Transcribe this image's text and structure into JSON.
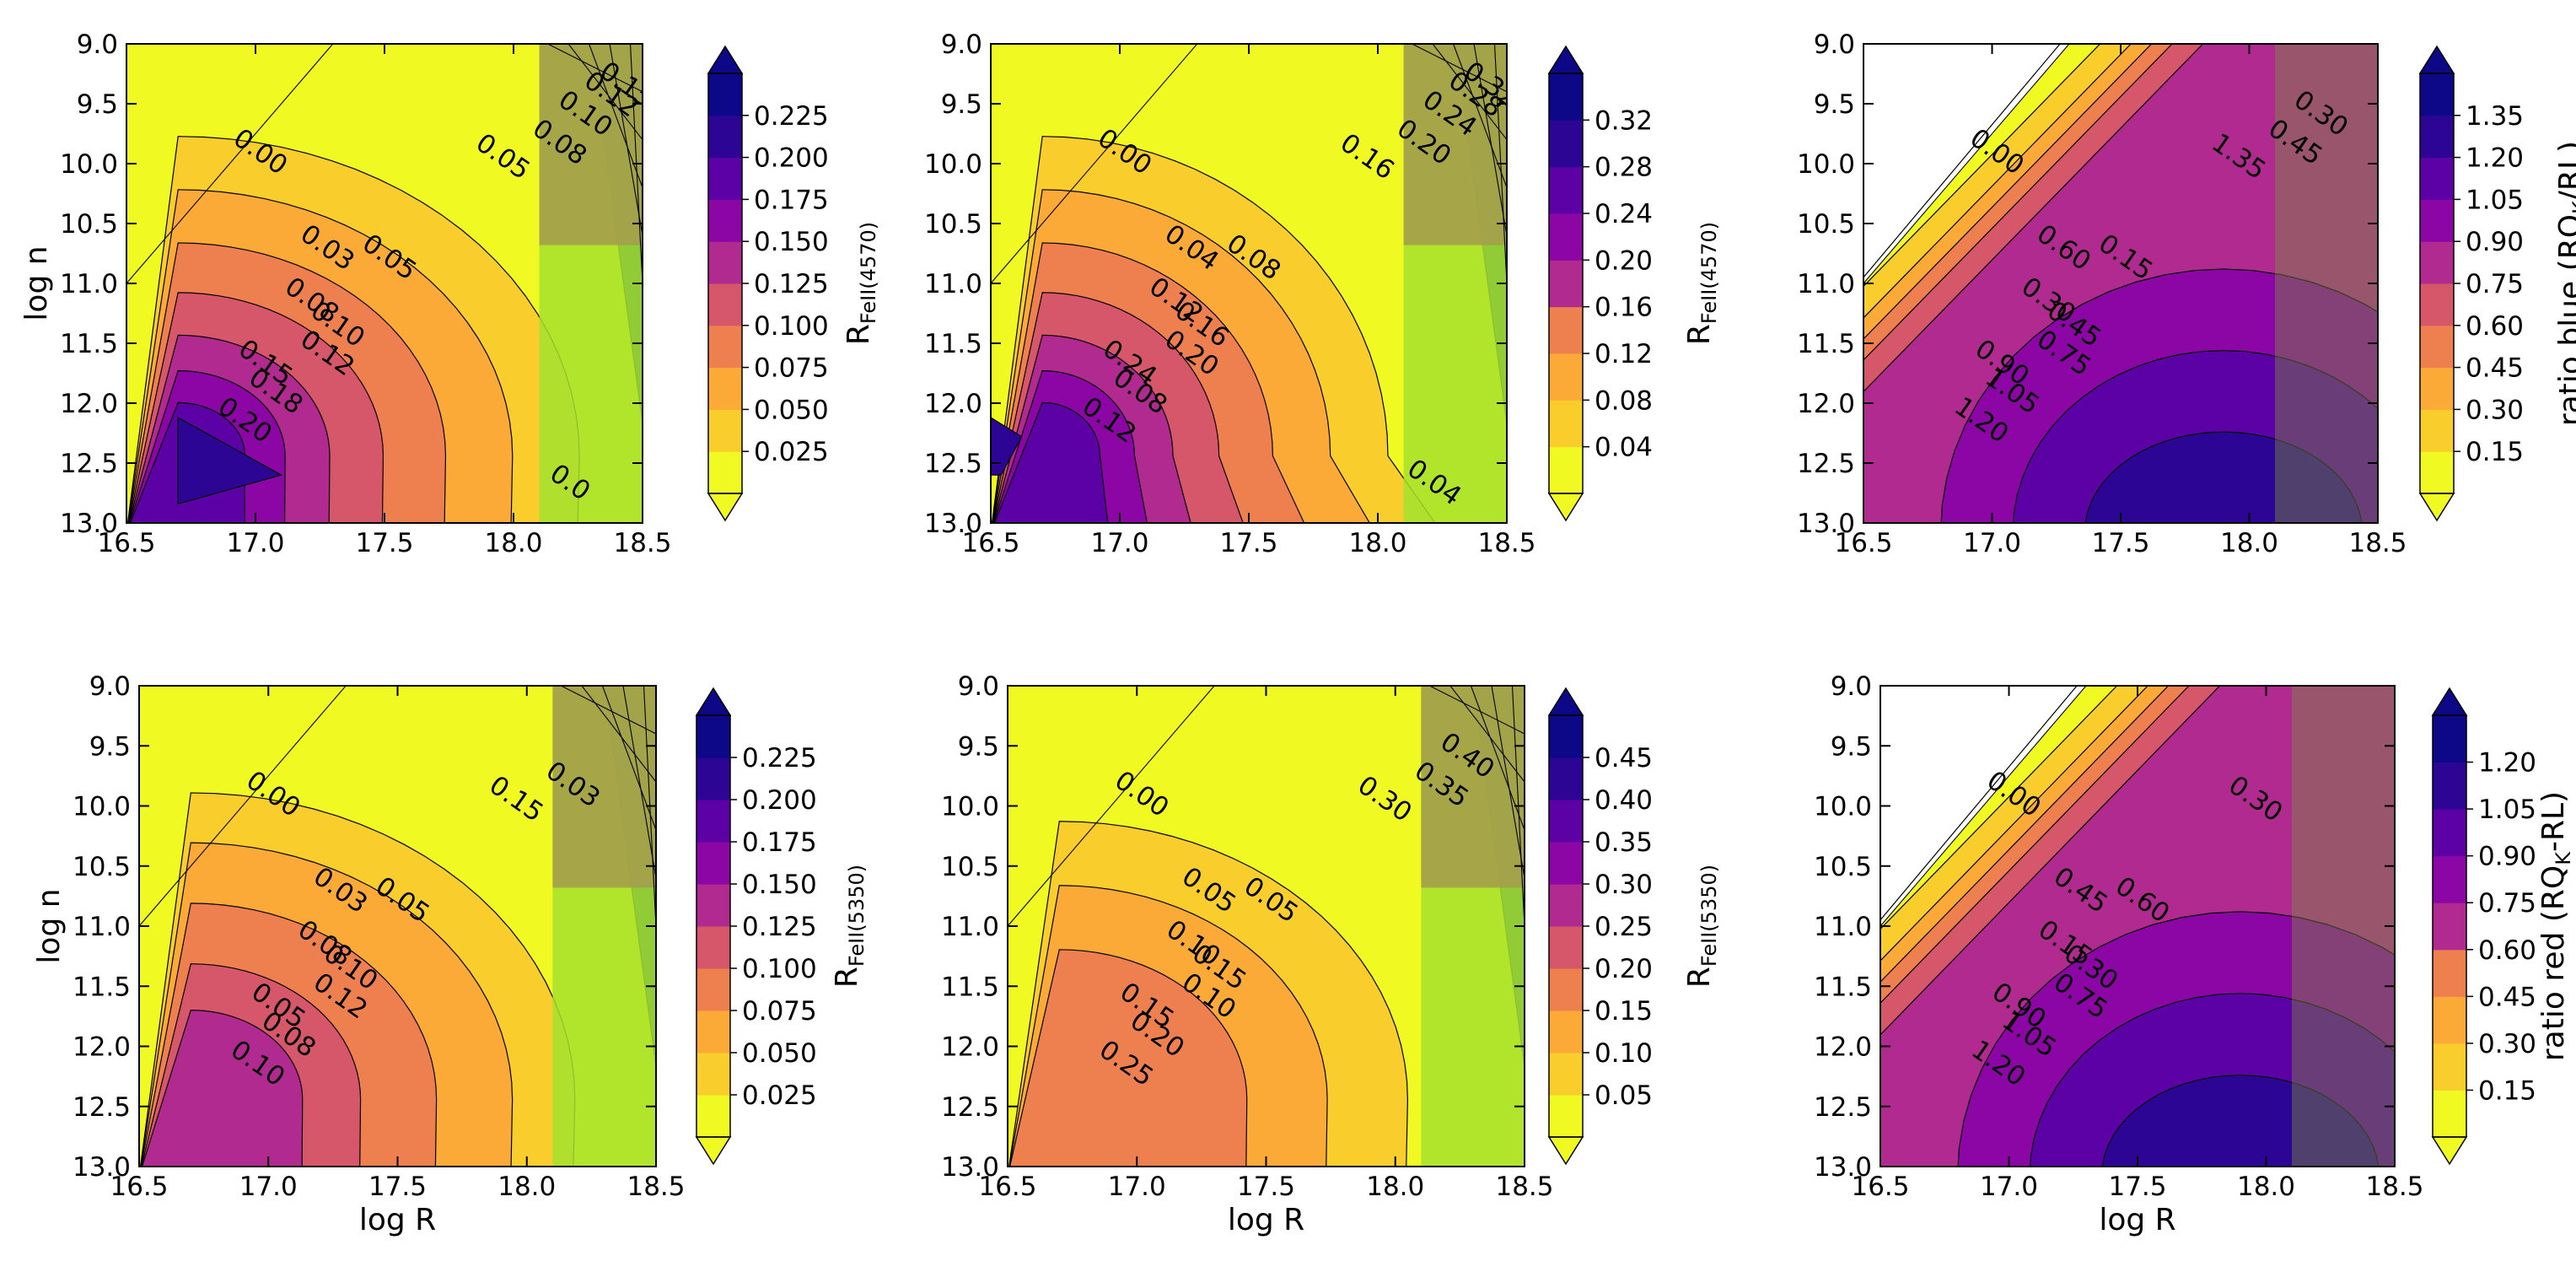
{
  "chart_data": [
    {
      "id": "p1",
      "type": "contour",
      "xlabel": "",
      "ylabel": "log n",
      "colorbar_label": "R",
      "colorbar_sub": "FeII(4570)",
      "x_ticks": [
        "16.5",
        "17.0",
        "17.5",
        "18.0",
        "18.5"
      ],
      "y_ticks": [
        "9.0",
        "9.5",
        "10.0",
        "10.5",
        "11.0",
        "11.5",
        "12.0",
        "12.5",
        "13.0"
      ],
      "xlim": [
        16.5,
        18.5
      ],
      "ylim": [
        9.0,
        13.0
      ],
      "colorbar_ticks": [
        "0.025",
        "0.050",
        "0.075",
        "0.100",
        "0.125",
        "0.150",
        "0.175",
        "0.200",
        "0.225"
      ],
      "contour_labels": [
        "0.00",
        "0.03",
        "0.05",
        "0.08",
        "0.10",
        "0.12",
        "0.15",
        "0.18",
        "0.20",
        "0.05",
        "0.08",
        "0.10",
        "0.12",
        "0.15",
        "0.0"
      ]
    },
    {
      "id": "p2",
      "type": "contour",
      "xlabel": "",
      "ylabel": "",
      "colorbar_label": "R",
      "colorbar_sub": "FeII(4570)",
      "x_ticks": [
        "16.5",
        "17.0",
        "17.5",
        "18.0",
        "18.5"
      ],
      "y_ticks": [
        "9.0",
        "9.5",
        "10.0",
        "10.5",
        "11.0",
        "11.5",
        "12.0",
        "12.5",
        "13.0"
      ],
      "xlim": [
        16.5,
        18.5
      ],
      "ylim": [
        9.0,
        13.0
      ],
      "colorbar_ticks": [
        "0.04",
        "0.08",
        "0.12",
        "0.16",
        "0.20",
        "0.24",
        "0.28",
        "0.32"
      ],
      "contour_labels": [
        "0.00",
        "0.04",
        "0.08",
        "0.12",
        "0.16",
        "0.20",
        "0.24",
        "0.08",
        "0.12",
        "0.16",
        "0.20",
        "0.24",
        "0.28",
        "0.32",
        "0.04"
      ]
    },
    {
      "id": "p3",
      "type": "contour",
      "xlabel": "",
      "ylabel": "",
      "colorbar_label": "ratio blue (RQ",
      "colorbar_sub": "K",
      "colorbar_suffix": "/RL)",
      "x_ticks": [
        "16.5",
        "17.0",
        "17.5",
        "18.0",
        "18.5"
      ],
      "y_ticks": [
        "9.0",
        "9.5",
        "10.0",
        "10.5",
        "11.0",
        "11.5",
        "12.0",
        "12.5",
        "13.0"
      ],
      "xlim": [
        16.5,
        18.5
      ],
      "ylim": [
        9.0,
        13.0
      ],
      "colorbar_ticks": [
        "0.15",
        "0.30",
        "0.45",
        "0.60",
        "0.75",
        "0.90",
        "1.05",
        "1.20",
        "1.35"
      ],
      "contour_labels": [
        "0.00",
        "0.60",
        "0.15",
        "0.30",
        "0.45",
        "0.75",
        "0.90",
        "1.05",
        "1.20",
        "1.35",
        "0.45",
        "0.30"
      ]
    },
    {
      "id": "p4",
      "type": "contour",
      "xlabel": "log R",
      "ylabel": "log n",
      "colorbar_label": "R",
      "colorbar_sub": "FeII(5350)",
      "x_ticks": [
        "16.5",
        "17.0",
        "17.5",
        "18.0",
        "18.5"
      ],
      "y_ticks": [
        "9.0",
        "9.5",
        "10.0",
        "10.5",
        "11.0",
        "11.5",
        "12.0",
        "12.5",
        "13.0"
      ],
      "xlim": [
        16.5,
        18.5
      ],
      "ylim": [
        9.0,
        13.0
      ],
      "colorbar_ticks": [
        "0.025",
        "0.050",
        "0.075",
        "0.100",
        "0.125",
        "0.150",
        "0.175",
        "0.200",
        "0.225"
      ],
      "contour_labels": [
        "0.00",
        "0.03",
        "0.05",
        "0.08",
        "0.10",
        "0.12",
        "0.05",
        "0.08",
        "0.10",
        "0.15",
        "0.03"
      ]
    },
    {
      "id": "p5",
      "type": "contour",
      "xlabel": "log R",
      "ylabel": "",
      "colorbar_label": "R",
      "colorbar_sub": "FeII(5350)",
      "x_ticks": [
        "16.5",
        "17.0",
        "17.5",
        "18.0",
        "18.5"
      ],
      "y_ticks": [
        "9.0",
        "9.5",
        "10.0",
        "10.5",
        "11.0",
        "11.5",
        "12.0",
        "12.5",
        "13.0"
      ],
      "xlim": [
        16.5,
        18.5
      ],
      "ylim": [
        9.0,
        13.0
      ],
      "colorbar_ticks": [
        "0.05",
        "0.10",
        "0.15",
        "0.20",
        "0.25",
        "0.30",
        "0.35",
        "0.40",
        "0.45"
      ],
      "contour_labels": [
        "0.00",
        "0.05",
        "0.05",
        "0.10",
        "0.15",
        "0.10",
        "0.15",
        "0.20",
        "0.25",
        "0.30",
        "0.35",
        "0.40"
      ]
    },
    {
      "id": "p6",
      "type": "contour",
      "xlabel": "log R",
      "ylabel": "",
      "colorbar_label": "ratio red (RQ",
      "colorbar_sub": "K",
      "colorbar_suffix": "-RL)",
      "x_ticks": [
        "16.5",
        "17.0",
        "17.5",
        "18.0",
        "18.5"
      ],
      "y_ticks": [
        "9.0",
        "9.5",
        "10.0",
        "10.5",
        "11.0",
        "11.5",
        "12.0",
        "12.5",
        "13.0"
      ],
      "xlim": [
        16.5,
        18.5
      ],
      "ylim": [
        9.0,
        13.0
      ],
      "colorbar_ticks": [
        "0.15",
        "0.30",
        "0.45",
        "0.60",
        "0.75",
        "0.90",
        "1.05",
        "1.20"
      ],
      "contour_labels": [
        "0.00",
        "0.45",
        "0.60",
        "0.15",
        "0.30",
        "0.75",
        "0.90",
        "1.05",
        "1.20",
        "0.30"
      ]
    }
  ]
}
